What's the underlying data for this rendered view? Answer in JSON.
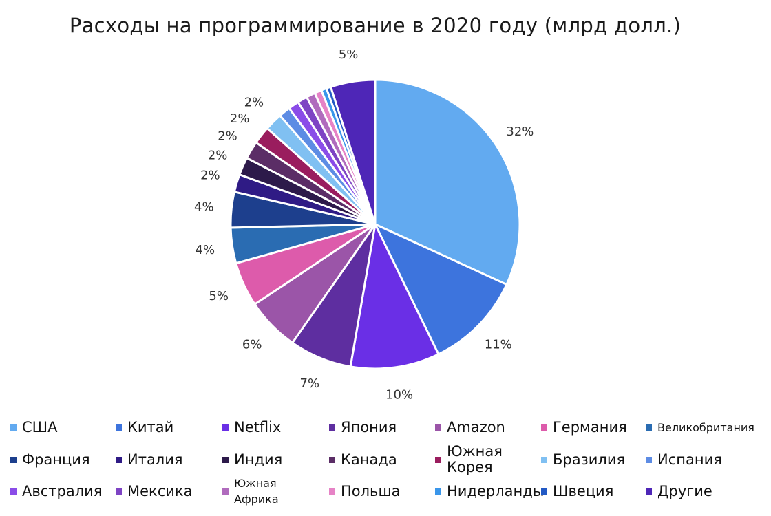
{
  "chart_data": {
    "type": "pie",
    "title": "Расходы на программирование в 2020 году (млрд долл.)",
    "unit": "%",
    "slices": [
      {
        "label": "США",
        "value": 32,
        "display": "32%",
        "color": "#62aaf0"
      },
      {
        "label": "Китай",
        "value": 11,
        "display": "11%",
        "color": "#3d74dd"
      },
      {
        "label": "Netflix",
        "value": 10,
        "display": "10%",
        "color": "#6a2fe6"
      },
      {
        "label": "Япония",
        "value": 7,
        "display": "7%",
        "color": "#5e2ea0"
      },
      {
        "label": "Amazon",
        "value": 6,
        "display": "6%",
        "color": "#9b55a8"
      },
      {
        "label": "Германия",
        "value": 5,
        "display": "5%",
        "color": "#dd5bab"
      },
      {
        "label": "Великобритания",
        "value": 4,
        "display": "4%",
        "color": "#2a6cb2"
      },
      {
        "label": "Франция",
        "value": 4,
        "display": "4%",
        "color": "#1d3f8d"
      },
      {
        "label": "Италия",
        "value": 2,
        "display": "2%",
        "color": "#2f1b85"
      },
      {
        "label": "Индия",
        "value": 2,
        "display": "2%",
        "color": "#2d1a4a"
      },
      {
        "label": "Канада",
        "value": 2,
        "display": "2%",
        "color": "#5b2d66"
      },
      {
        "label": "Южная Корея",
        "value": 2,
        "display": "2%",
        "color": "#9a1d5e"
      },
      {
        "label": "Бразилия",
        "value": 2,
        "display": "2%",
        "color": "#80c0f2"
      },
      {
        "label": "Испания",
        "value": 1.3,
        "display": "",
        "color": "#5d8ce4"
      },
      {
        "label": "Австралия",
        "value": 1.2,
        "display": "",
        "color": "#8a4ce8"
      },
      {
        "label": "Мексика",
        "value": 1.1,
        "display": "",
        "color": "#7e44c4"
      },
      {
        "label": "Южная Африка",
        "value": 1,
        "display": "",
        "color": "#b06bbd"
      },
      {
        "label": "Польша",
        "value": 0.8,
        "display": "",
        "color": "#e683c6"
      },
      {
        "label": "Нидерланды",
        "value": 0.6,
        "display": "",
        "color": "#3a96ea"
      },
      {
        "label": "Швеция",
        "value": 0.5,
        "display": "",
        "color": "#2259c4"
      },
      {
        "label": "Другие",
        "value": 5,
        "display": "5%",
        "color": "#4e26b7"
      }
    ],
    "legend_position": "bottom",
    "grid": false
  }
}
